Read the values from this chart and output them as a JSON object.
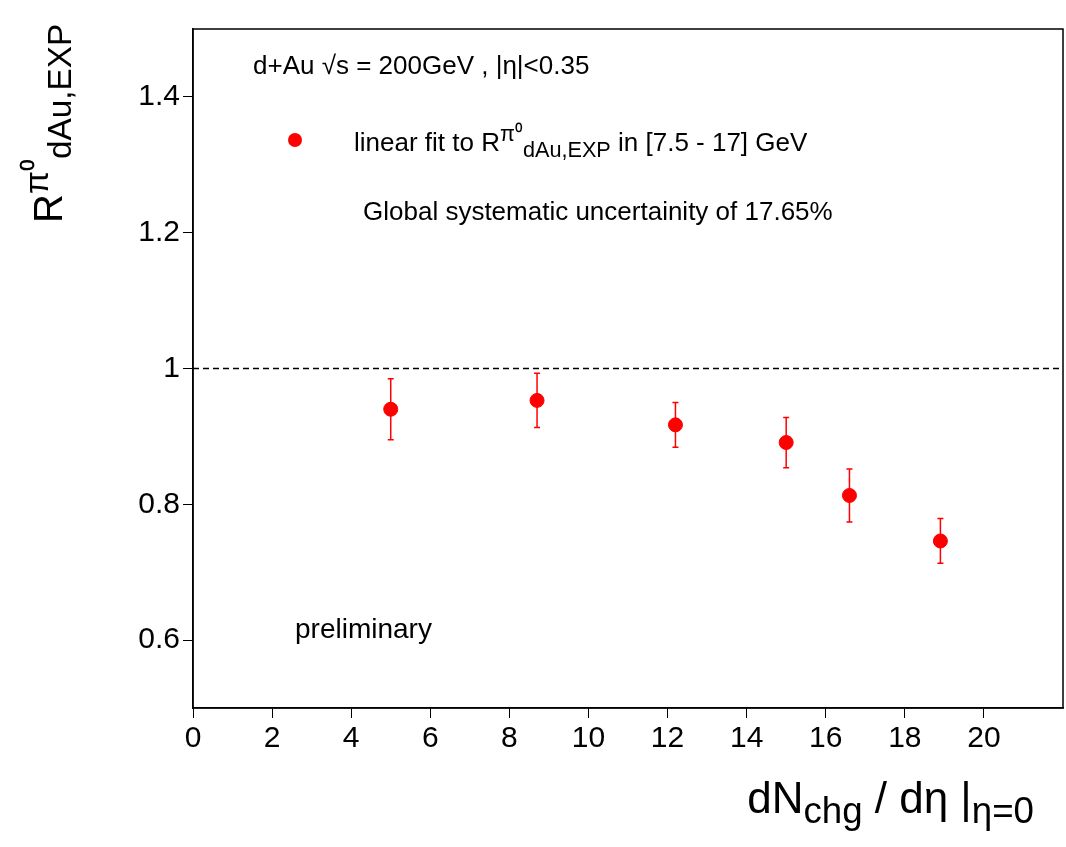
{
  "chart_data": {
    "type": "scatter",
    "xlabel": "dN$_{chg}$ / dη |$_{η=0}$",
    "ylabel": "R$^{π⁰}$$_{dAu,EXP}$",
    "x": [
      5.0,
      8.7,
      12.2,
      15.0,
      16.6,
      18.9
    ],
    "series": [
      {
        "name": "linear fit to R$^{π⁰}$$_{dAu,EXP}$ in [7.5 - 17] GeV",
        "color": "#ff0000",
        "values": [
          0.94,
          0.953,
          0.917,
          0.891,
          0.813,
          0.746
        ],
        "errors": [
          0.045,
          0.04,
          0.033,
          0.037,
          0.039,
          0.033
        ]
      }
    ],
    "xlim": [
      0,
      22
    ],
    "xticks": [
      0,
      2,
      4,
      6,
      8,
      10,
      12,
      14,
      16,
      18,
      20
    ],
    "ylim": [
      0.5,
      1.5
    ],
    "yticks": [
      0.6,
      0.8,
      1,
      1.2,
      1.4
    ],
    "marker": "circle",
    "grid": false,
    "legend": "top left",
    "ref_lines": [
      {
        "axis": "y",
        "value": 1,
        "color": "#000000",
        "line_style": "dashed"
      }
    ],
    "annotations": [
      "d+Au √s = 200GeV , |η|<0.35",
      "Global systematic uncertainity of 17.65%",
      "preliminary"
    ]
  }
}
